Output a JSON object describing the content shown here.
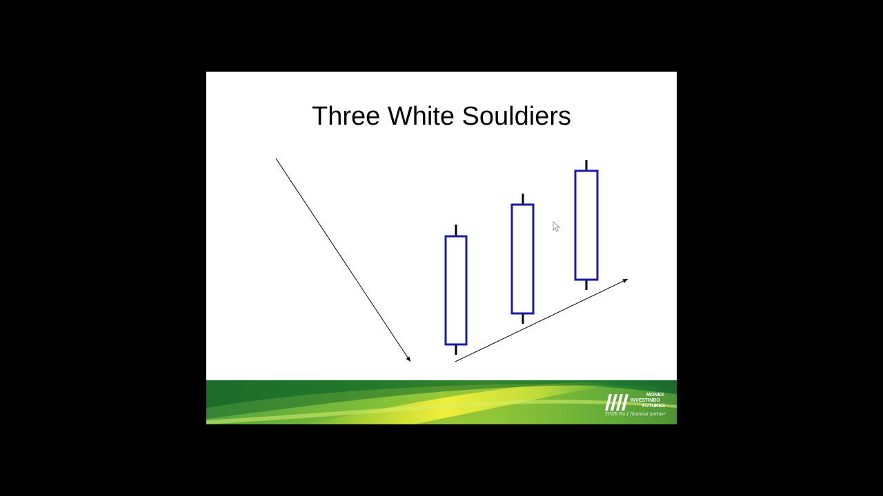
{
  "slide": {
    "title": "Three White Souldiers"
  },
  "colors": {
    "background": "#000000",
    "slide": "#ffffff",
    "candle_border": "#1a1aa8",
    "wick": "#000000",
    "arrow": "#000000",
    "band_dark_green": "#1f7a2a",
    "band_light_green": "#8cc63f",
    "band_yellow": "#e6e62e"
  },
  "diagram": {
    "candles": [
      {
        "label": "candle-1"
      },
      {
        "label": "candle-2"
      },
      {
        "label": "candle-3"
      }
    ],
    "arrows": [
      {
        "label": "downtrend-arrow"
      },
      {
        "label": "uptrend-arrow"
      }
    ]
  },
  "logo": {
    "line1": "MONEX",
    "line2": "INVESTINDO",
    "line3": "FUTURES",
    "tagline": "YOUR No.1 financial partner"
  },
  "icons": {
    "cursor": "mouse-pointer-icon",
    "logo_mark": "monex-stripes-icon"
  }
}
